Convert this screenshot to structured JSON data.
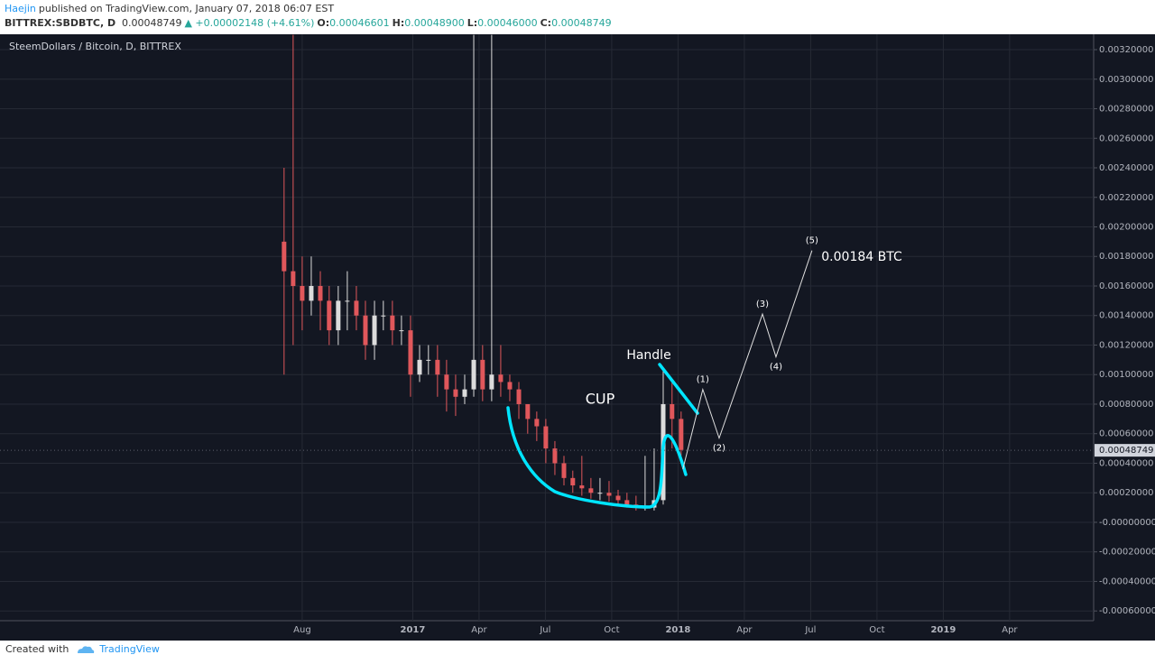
{
  "header": {
    "author": "Haejin",
    "published": "published on TradingView.com, January 07, 2018 06:07 EST",
    "symbol": "BITTREX:SBDBTC, D",
    "price": "0.00048749",
    "change": "▲ +0.00002148 (+4.61%)",
    "ohlc": [
      {
        "label": "O:",
        "value": "0.00046601"
      },
      {
        "label": "H:",
        "value": "0.00048900"
      },
      {
        "label": "L:",
        "value": "0.00046000"
      },
      {
        "label": "C:",
        "value": "0.00048749"
      }
    ]
  },
  "footer": {
    "created": "Created with",
    "brand": "TradingView"
  },
  "chart_data": {
    "type": "candlestick",
    "title": "SteemDollars / Bitcoin, D, BITTREX",
    "up_color": "#dcdcdc",
    "down_color": "#e0575b",
    "grid": true,
    "xlim": [
      -13.67,
      35.8
    ],
    "ylim": [
      -0.000666,
      0.003304
    ],
    "xticks": [
      {
        "value": 0,
        "label": "Aug"
      },
      {
        "value": 5,
        "label": "2017"
      },
      {
        "value": 8,
        "label": "Apr"
      },
      {
        "value": 11,
        "label": "Jul"
      },
      {
        "value": 14,
        "label": "Oct"
      },
      {
        "value": 17,
        "label": "2018"
      },
      {
        "value": 20,
        "label": "Apr"
      },
      {
        "value": 23,
        "label": "Jul"
      },
      {
        "value": 26,
        "label": "Oct"
      },
      {
        "value": 29,
        "label": "2019"
      },
      {
        "value": 32,
        "label": "Apr"
      }
    ],
    "yticks": [
      {
        "value": 0.0032,
        "label": "0.00320000"
      },
      {
        "value": 0.003,
        "label": "0.00300000"
      },
      {
        "value": 0.0028,
        "label": "0.00280000"
      },
      {
        "value": 0.0026,
        "label": "0.00260000"
      },
      {
        "value": 0.0024,
        "label": "0.00240000"
      },
      {
        "value": 0.0022,
        "label": "0.00220000"
      },
      {
        "value": 0.002,
        "label": "0.00200000"
      },
      {
        "value": 0.0018,
        "label": "0.00180000"
      },
      {
        "value": 0.0016,
        "label": "0.00160000"
      },
      {
        "value": 0.0014,
        "label": "0.00140000"
      },
      {
        "value": 0.0012,
        "label": "0.00120000"
      },
      {
        "value": 0.001,
        "label": "0.00100000"
      },
      {
        "value": 0.0008,
        "label": "0.00080000"
      },
      {
        "value": 0.0006,
        "label": "0.00060000"
      },
      {
        "value": 0.0004,
        "label": "0.00040000"
      },
      {
        "value": 0.0002,
        "label": "0.00020000"
      },
      {
        "value": 0,
        "label": "-0.00000000"
      },
      {
        "value": -0.0002,
        "label": "-0.00020000"
      },
      {
        "value": -0.0004,
        "label": "-0.00040000"
      },
      {
        "value": -0.0006,
        "label": "-0.00060000"
      }
    ],
    "x": [
      -0.82,
      -0.41,
      0,
      0.41,
      0.82,
      1.22,
      1.63,
      2.04,
      2.45,
      2.86,
      3.27,
      3.67,
      4.08,
      4.49,
      4.9,
      5.31,
      5.71,
      6.12,
      6.53,
      6.94,
      7.35,
      7.76,
      8.16,
      8.57,
      8.98,
      9.39,
      9.8,
      10.2,
      10.61,
      11.02,
      11.43,
      11.84,
      12.24,
      12.65,
      13.06,
      13.47,
      13.88,
      14.29,
      14.69,
      15.1,
      15.51,
      15.92,
      16.33,
      16.73,
      17.14
    ],
    "open": [
      0.0019,
      0.0017,
      0.0016,
      0.0015,
      0.0016,
      0.0015,
      0.0013,
      0.0015,
      0.0015,
      0.0014,
      0.0012,
      0.0014,
      0.0014,
      0.0013,
      0.0013,
      0.001,
      0.0011,
      0.0011,
      0.001,
      0.0009,
      0.00085,
      0.0009,
      0.0011,
      0.0009,
      0.001,
      0.00095,
      0.0009,
      0.0008,
      0.0007,
      0.00065,
      0.0005,
      0.0004,
      0.0003,
      0.00025,
      0.00023,
      0.0002,
      0.0002,
      0.00018,
      0.00015,
      0.00012,
      0.0001,
      0.0001,
      0.00015,
      0.0008,
      0.0007
    ],
    "high": [
      0.0024,
      0.0033,
      0.0018,
      0.0018,
      0.0017,
      0.0016,
      0.0016,
      0.0017,
      0.0016,
      0.0015,
      0.0015,
      0.0015,
      0.0015,
      0.0014,
      0.0014,
      0.0012,
      0.0012,
      0.0012,
      0.0011,
      0.001,
      0.001,
      0.0033,
      0.0012,
      0.0033,
      0.0012,
      0.001,
      0.00095,
      0.0008,
      0.00075,
      0.0007,
      0.00055,
      0.00045,
      0.00035,
      0.00045,
      0.0003,
      0.0003,
      0.00028,
      0.00022,
      0.0002,
      0.00018,
      0.00045,
      0.0005,
      0.00105,
      0.00095,
      0.00075
    ],
    "low": [
      0.001,
      0.0012,
      0.0013,
      0.0014,
      0.0013,
      0.0012,
      0.0012,
      0.0013,
      0.0013,
      0.0011,
      0.0011,
      0.0013,
      0.0012,
      0.0012,
      0.00085,
      0.00095,
      0.001,
      0.00085,
      0.00075,
      0.00072,
      0.0008,
      0.00085,
      0.00082,
      0.00082,
      0.00085,
      0.00082,
      0.0007,
      0.0006,
      0.00055,
      0.0004,
      0.00032,
      0.00025,
      0.0002,
      0.00018,
      0.00016,
      0.00015,
      0.00014,
      0.00012,
      0.0001,
      8e-05,
      8e-05,
      8e-05,
      0.00012,
      0.0005,
      0.00045
    ],
    "close": [
      0.0017,
      0.0016,
      0.0015,
      0.0016,
      0.0015,
      0.0013,
      0.0015,
      0.0015,
      0.0014,
      0.0012,
      0.0014,
      0.0014,
      0.0013,
      0.0013,
      0.001,
      0.0011,
      0.0011,
      0.001,
      0.0009,
      0.00085,
      0.0009,
      0.0011,
      0.0009,
      0.001,
      0.00095,
      0.0009,
      0.0008,
      0.0007,
      0.00065,
      0.0005,
      0.0004,
      0.0003,
      0.00025,
      0.00023,
      0.0002,
      0.0002,
      0.00018,
      0.00015,
      0.00012,
      0.0001,
      0.0001,
      0.00015,
      0.0008,
      0.0007,
      0.00049
    ],
    "last_price": {
      "value": 0.00048749,
      "label": "0.00048749"
    },
    "wave": {
      "labels": [
        null,
        "(1)",
        "(2)",
        "(3)",
        "(4)",
        "(5)"
      ],
      "x": [
        17.22,
        18.12,
        18.86,
        20.82,
        21.43,
        23.06
      ],
      "y": [
        0.00036,
        0.0009,
        0.00057,
        0.00141,
        0.00112,
        0.00184
      ]
    },
    "annotations": [
      "CUP",
      "Handle",
      "0.00184 BTC"
    ]
  }
}
